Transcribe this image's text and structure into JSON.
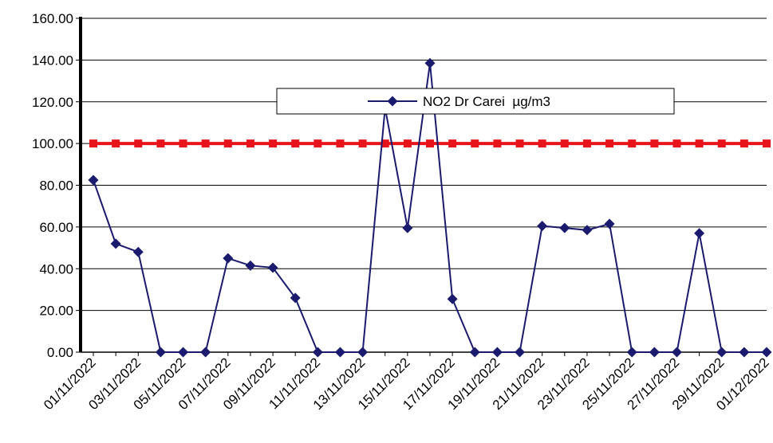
{
  "chart_data": {
    "type": "line",
    "title": "",
    "xlabel": "",
    "ylabel": "",
    "ylim": [
      0,
      160
    ],
    "y_ticks": [
      "0.00",
      "20.00",
      "40.00",
      "60.00",
      "80.00",
      "100.00",
      "120.00",
      "140.00",
      "160.00"
    ],
    "x_tick_labels": [
      "01/11/2022",
      "03/11/2022",
      "05/11/2022",
      "07/11/2022",
      "09/11/2022",
      "11/11/2022",
      "13/11/2022",
      "15/11/2022",
      "17/11/2022",
      "19/11/2022",
      "21/11/2022",
      "23/11/2022",
      "25/11/2022",
      "27/11/2022",
      "29/11/2022",
      "01/12/2022"
    ],
    "x": [
      "01/11/2022",
      "02/11/2022",
      "03/11/2022",
      "04/11/2022",
      "05/11/2022",
      "06/11/2022",
      "07/11/2022",
      "08/11/2022",
      "09/11/2022",
      "10/11/2022",
      "11/11/2022",
      "12/11/2022",
      "13/11/2022",
      "14/11/2022",
      "15/11/2022",
      "16/11/2022",
      "17/11/2022",
      "18/11/2022",
      "19/11/2022",
      "20/11/2022",
      "21/11/2022",
      "22/11/2022",
      "23/11/2022",
      "24/11/2022",
      "25/11/2022",
      "26/11/2022",
      "27/11/2022",
      "28/11/2022",
      "29/11/2022",
      "30/11/2022",
      "01/12/2022"
    ],
    "series": [
      {
        "name": "NO2 Dr Carei  µg/m3",
        "color": "#1a1a6e",
        "marker": "diamond",
        "values": [
          82.5,
          52,
          48,
          0,
          0,
          0,
          45,
          41.5,
          40.5,
          26,
          0,
          0,
          0,
          117,
          59.5,
          138.5,
          25.5,
          0,
          0,
          0,
          60.5,
          59.5,
          58.5,
          61.5,
          0,
          0,
          0,
          57,
          0,
          0,
          0
        ]
      },
      {
        "name": "",
        "color": "#e8141b",
        "marker": "square",
        "values": [
          100,
          100,
          100,
          100,
          100,
          100,
          100,
          100,
          100,
          100,
          100,
          100,
          100,
          100,
          100,
          100,
          100,
          100,
          100,
          100,
          100,
          100,
          100,
          100,
          100,
          100,
          100,
          100,
          100,
          100,
          100
        ]
      }
    ],
    "legend": {
      "placement": "top-center",
      "entries": [
        "NO2 Dr Carei  µg/m3"
      ]
    },
    "grid": true
  }
}
